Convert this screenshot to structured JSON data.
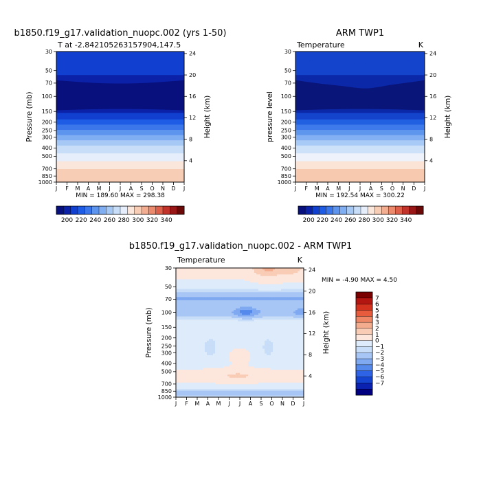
{
  "palettes": {
    "abs": [
      "#08107e",
      "#0b22a8",
      "#1140d0",
      "#1f5ce6",
      "#3b77ea",
      "#5d94ee",
      "#80aef2",
      "#a5c8f5",
      "#c8def8",
      "#e6eefb",
      "#fbe6dc",
      "#f8cdb6",
      "#f3ae91",
      "#eb8a6d",
      "#de5f4a",
      "#c2332b",
      "#9a1717",
      "#6b0808"
    ],
    "diff": [
      "#000080",
      "#0b22b0",
      "#1545d0",
      "#2f63e6",
      "#5589ec",
      "#7fa9f1",
      "#a7c6f5",
      "#c8ddf8",
      "#deebfb",
      "#fde6dc",
      "#f9ccb6",
      "#f4ac8e",
      "#ee8866",
      "#e65c3d",
      "#d3321e",
      "#b31510",
      "#7a0000"
    ]
  },
  "months": [
    "J",
    "F",
    "M",
    "A",
    "M",
    "J",
    "J",
    "A",
    "S",
    "O",
    "N",
    "D",
    "J"
  ],
  "pressure_ticks": [
    30,
    50,
    70,
    100,
    150,
    200,
    250,
    300,
    400,
    500,
    700,
    850,
    1000
  ],
  "height_ticks": [
    4,
    8,
    12,
    16,
    20,
    24
  ],
  "panels": [
    {
      "id": "model",
      "title": "b1850.f19_g17.validation_nuopc.002 (yrs 1-50)",
      "left_label": "T at -2.842105263157904,147.5",
      "right_label": "",
      "ylabel": "Pressure (mb)",
      "y2label": "Height (km)",
      "stats": "MIN = 189.60 MAX = 298.38"
    },
    {
      "id": "obs",
      "title": "ARM TWP1",
      "left_label": "Temperature",
      "right_label": "K",
      "ylabel": "pressure level",
      "y2label": "Height (km)",
      "stats": "MIN = 192.54 MAX = 300.22"
    },
    {
      "id": "diff",
      "title": "b1850.f19_g17.validation_nuopc.002 - ARM TWP1",
      "left_label": "Temperature",
      "right_label": "K",
      "ylabel": "Pressure (mb)",
      "y2label": "Height (km)",
      "stats": "MIN =   -4.90 MAX =    4.50"
    }
  ],
  "colorbar_abs": {
    "labels": [
      "200",
      "220",
      "240",
      "260",
      "280",
      "300",
      "320",
      "340"
    ]
  },
  "colorbar_diff": {
    "labels": [
      "7",
      "6",
      "5",
      "4",
      "3",
      "2",
      "1",
      "0",
      "−1",
      "−2",
      "−3",
      "−4",
      "−5",
      "−6",
      "−7"
    ]
  },
  "chart_data": [
    {
      "type": "heatmap",
      "name": "model",
      "title": "b1850.f19_g17.validation_nuopc.002 (yrs 1-50)",
      "subtitle": "T at -2.842105263157904,147.5",
      "xlabel": "",
      "ylabel": "Pressure (mb)",
      "y2label": "Height (km)",
      "x": [
        "J",
        "F",
        "M",
        "A",
        "M",
        "J",
        "J",
        "A",
        "S",
        "O",
        "N",
        "D",
        "J"
      ],
      "y_pressure_mb": [
        30,
        50,
        70,
        100,
        150,
        200,
        250,
        300,
        400,
        500,
        700,
        850,
        1000
      ],
      "units": "K",
      "value_range": [
        189.6,
        298.38
      ],
      "values_profile_K": [
        222,
        210,
        198,
        192,
        200,
        214,
        228,
        240,
        256,
        268,
        282,
        290,
        298
      ],
      "ylim": [
        1000,
        30
      ],
      "y_scale": "log",
      "colorbar_levels": [
        190,
        200,
        210,
        220,
        230,
        240,
        250,
        260,
        270,
        280,
        290,
        300,
        310,
        320,
        330,
        340,
        350
      ]
    },
    {
      "type": "heatmap",
      "name": "obs",
      "title": "ARM TWP1",
      "subtitle": "Temperature",
      "xlabel": "",
      "ylabel": "pressure level",
      "y2label": "Height (km)",
      "x": [
        "J",
        "F",
        "M",
        "A",
        "M",
        "J",
        "J",
        "A",
        "S",
        "O",
        "N",
        "D",
        "J"
      ],
      "y_pressure_mb": [
        30,
        50,
        70,
        100,
        150,
        200,
        250,
        300,
        400,
        500,
        700,
        850,
        1000
      ],
      "units": "K",
      "value_range": [
        192.54,
        300.22
      ],
      "values_profile_K": [
        224,
        212,
        200,
        194,
        202,
        216,
        230,
        242,
        258,
        270,
        284,
        292,
        300
      ],
      "ylim": [
        1000,
        30
      ],
      "y_scale": "log",
      "colorbar_levels": [
        190,
        200,
        210,
        220,
        230,
        240,
        250,
        260,
        270,
        280,
        290,
        300,
        310,
        320,
        330,
        340,
        350
      ]
    },
    {
      "type": "heatmap",
      "name": "difference",
      "title": "b1850.f19_g17.validation_nuopc.002 - ARM TWP1",
      "subtitle": "Temperature",
      "xlabel": "",
      "ylabel": "Pressure (mb)",
      "y2label": "Height (km)",
      "x": [
        "J",
        "F",
        "M",
        "A",
        "M",
        "J",
        "J",
        "A",
        "S",
        "O",
        "N",
        "D",
        "J"
      ],
      "y_pressure_mb": [
        30,
        50,
        70,
        100,
        150,
        200,
        250,
        300,
        400,
        500,
        700,
        850,
        1000
      ],
      "units": "K",
      "value_range": [
        -4.9,
        4.5
      ],
      "colorbar_levels": [
        -7,
        -6,
        -5,
        -4,
        -3,
        -2,
        -1,
        0,
        1,
        2,
        3,
        4,
        5,
        6,
        7
      ],
      "ylim": [
        1000,
        30
      ],
      "y_scale": "log"
    }
  ]
}
